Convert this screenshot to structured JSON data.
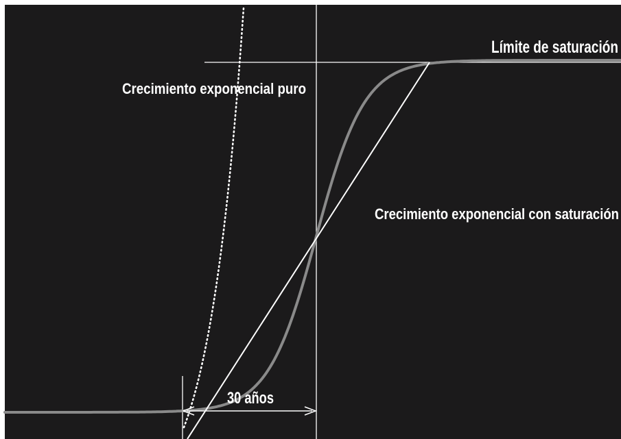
{
  "labels": {
    "saturation_limit": "Límite de saturación",
    "pure_exponential": "Crecimiento exponencial puro",
    "saturated_exponential": "Crecimiento exponencial con saturación",
    "interval": "30 años"
  },
  "colors": {
    "background": "#1b1a1b",
    "logistic_curve": "#8a8a8a",
    "lines": "#ffffff",
    "text": "#ffffff"
  }
}
